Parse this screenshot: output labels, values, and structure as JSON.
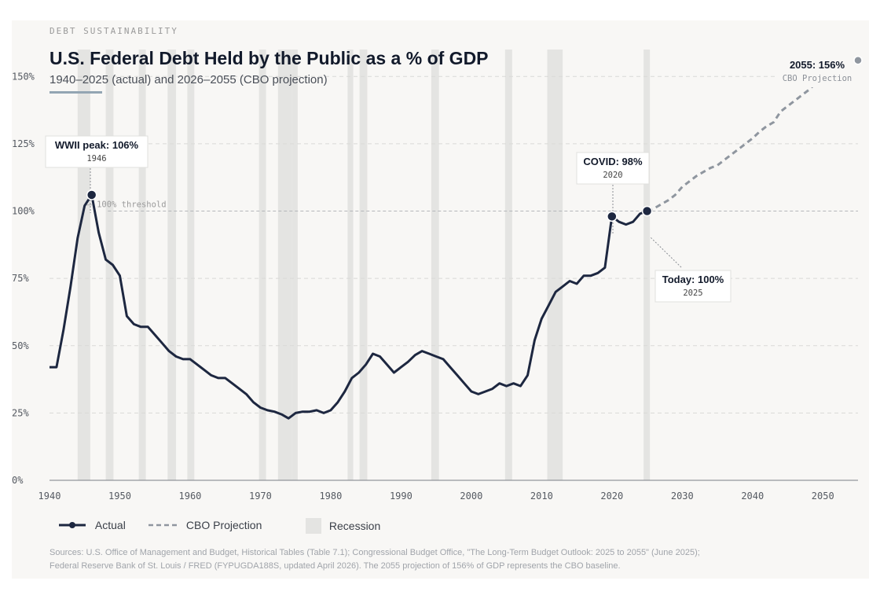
{
  "header": {
    "kicker": "DEBT SUSTAINABILITY",
    "title": "U.S. Federal Debt Held by the Public as a % of GDP",
    "subtitle": "1940–2025 (actual) and 2026–2055 (CBO projection)"
  },
  "legend": {
    "actual": "Actual",
    "projection": "CBO Projection",
    "recession": "Recession"
  },
  "sources": {
    "line1": "Sources: U.S. Office of Management and Budget, Historical Tables (Table 7.1); Congressional Budget Office, \"The Long-Term Budget Outlook: 2025 to 2055\" (June 2025);",
    "line2": "Federal Reserve Bank of St. Louis / FRED (FYPUGDA188S, updated April 2026). The 2055 projection of 156% of GDP represents the CBO baseline."
  },
  "colors": {
    "actual": "#1d2740",
    "projection": "#8f969f",
    "recession": "#e4e4e2",
    "background": "#f8f7f5"
  },
  "chart_data": {
    "type": "line",
    "xlim": [
      1940,
      2055
    ],
    "ylim": [
      0,
      160
    ],
    "x_ticks": [
      1940,
      1950,
      1960,
      1970,
      1980,
      1990,
      2000,
      2010,
      2020,
      2030,
      2040,
      2050
    ],
    "y_ticks": [
      {
        "value": 0,
        "label": "0%"
      },
      {
        "value": 25,
        "label": "25%"
      },
      {
        "value": 50,
        "label": "50%"
      },
      {
        "value": 75,
        "label": "75%"
      },
      {
        "value": 100,
        "label": "100%"
      },
      {
        "value": 125,
        "label": "125%"
      },
      {
        "value": 150,
        "label": "150%"
      }
    ],
    "grid": true,
    "legend_position": "bottom-left",
    "threshold": {
      "value": 100,
      "label": "100% threshold"
    },
    "recessions": [
      [
        1944.0,
        1945.8
      ],
      [
        1948.0,
        1949.1
      ],
      [
        1952.7,
        1953.7
      ],
      [
        1956.8,
        1958.0
      ],
      [
        1959.6,
        1960.6
      ],
      [
        1969.8,
        1970.8
      ],
      [
        1972.5,
        1974.5
      ],
      [
        1974.5,
        1975.3
      ],
      [
        1982.4,
        1983.2
      ],
      [
        1984.1,
        1985.2
      ],
      [
        1994.3,
        1995.4
      ],
      [
        2004.8,
        2005.8
      ],
      [
        2010.8,
        2013.0
      ],
      [
        2024.5,
        2025.4
      ]
    ],
    "series": [
      {
        "name": "Actual",
        "x": [
          1940,
          1941,
          1942,
          1943,
          1944,
          1945,
          1946,
          1947,
          1948,
          1949,
          1950,
          1951,
          1952,
          1953,
          1954,
          1955,
          1956,
          1957,
          1958,
          1959,
          1960,
          1961,
          1962,
          1963,
          1964,
          1965,
          1966,
          1967,
          1968,
          1969,
          1970,
          1971,
          1972,
          1973,
          1974,
          1975,
          1976,
          1977,
          1978,
          1979,
          1980,
          1981,
          1982,
          1983,
          1984,
          1985,
          1986,
          1987,
          1988,
          1989,
          1990,
          1991,
          1992,
          1993,
          1994,
          1995,
          1996,
          1997,
          1998,
          1999,
          2000,
          2001,
          2002,
          2003,
          2004,
          2005,
          2006,
          2007,
          2008,
          2009,
          2010,
          2011,
          2012,
          2013,
          2014,
          2015,
          2016,
          2017,
          2018,
          2019,
          2020,
          2021,
          2022,
          2023,
          2024,
          2025
        ],
        "values": [
          42,
          42,
          56,
          72,
          90,
          102,
          106,
          92,
          82,
          80,
          76,
          61,
          58,
          57,
          57,
          54,
          51,
          48,
          46,
          45,
          45,
          43,
          41,
          39,
          38,
          38,
          36,
          34,
          32,
          29,
          27,
          26,
          25.5,
          24.5,
          23,
          25,
          25.5,
          25.5,
          26,
          25,
          26,
          29,
          33,
          38,
          40,
          43,
          47,
          46,
          43,
          40,
          42,
          44,
          46.5,
          48,
          47,
          46,
          45,
          42,
          39,
          36,
          33,
          32,
          33,
          34,
          36,
          35,
          36,
          35,
          39,
          52,
          60,
          65,
          70,
          72,
          74,
          73,
          76,
          76,
          77,
          79,
          98,
          96,
          95,
          96,
          99,
          100
        ]
      },
      {
        "name": "CBO Projection",
        "x": [
          2025,
          2026,
          2027,
          2028,
          2029,
          2030,
          2031,
          2032,
          2033,
          2034,
          2035,
          2036,
          2037,
          2038,
          2039,
          2040,
          2041,
          2042,
          2043,
          2044,
          2045,
          2046,
          2047,
          2048,
          2049,
          2050,
          2051,
          2052,
          2053,
          2054,
          2055
        ],
        "values": [
          100,
          101,
          102.5,
          104,
          106,
          109,
          111,
          113,
          114.5,
          116,
          117,
          119,
          121,
          123,
          125,
          127,
          129.5,
          131.5,
          133,
          137,
          139,
          141,
          143,
          145,
          147.5,
          149.5,
          151.5,
          153.5,
          155,
          156,
          156
        ]
      }
    ],
    "annotations": [
      {
        "label": "WWII peak: 106%",
        "sub": "1946",
        "x": 1946,
        "y": 106
      },
      {
        "label": "COVID: 98%",
        "sub": "2020",
        "x": 2020,
        "y": 98
      },
      {
        "label": "Today: 100%",
        "sub": "2025",
        "x": 2025,
        "y": 100
      },
      {
        "label": "2055: 156%",
        "sub": "CBO Projection",
        "x": 2055,
        "y": 156
      }
    ]
  }
}
